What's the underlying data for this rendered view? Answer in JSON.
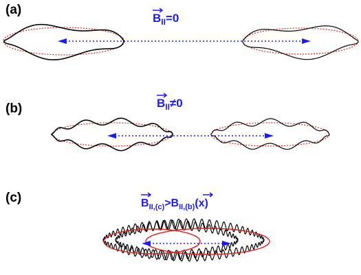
{
  "colors": {
    "curve": "#000000",
    "ellipse": "#e0201a",
    "arrow": "#1a1aff",
    "label": "#1a1aff"
  },
  "panels": [
    {
      "id": "a",
      "label": "(a)",
      "field_main": "B",
      "field_sub": "II",
      "field_rest": "=0"
    },
    {
      "id": "b",
      "label": "(b)",
      "field_main": "B",
      "field_sub": "II",
      "field_rest": "≠0"
    },
    {
      "id": "c",
      "label": "(c)",
      "field_main": "B",
      "field_sub": "II,(c)",
      "field_mid": ">B",
      "field_sub2": "II,(b)",
      "field_rest": "(x)"
    }
  ]
}
